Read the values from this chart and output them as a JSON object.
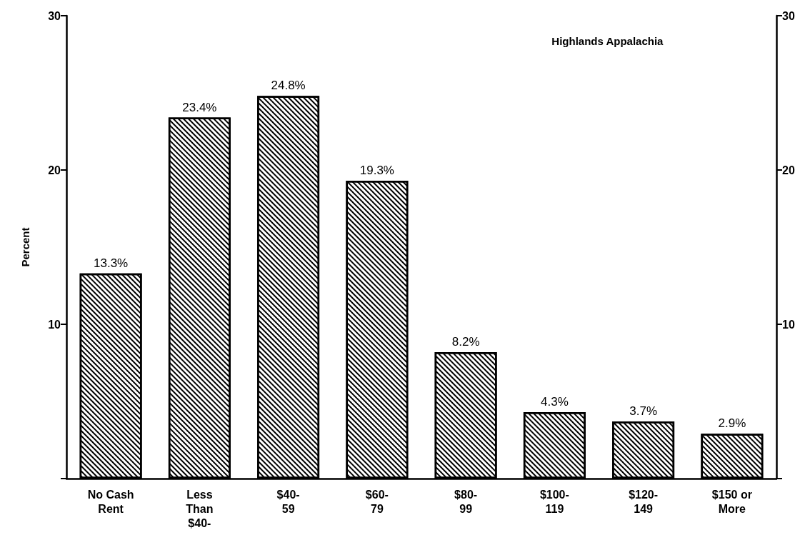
{
  "chart_data": {
    "type": "bar",
    "title": "Highlands Appalachia",
    "ylabel": "Percent",
    "categories": [
      "No Cash\nRent",
      "Less\nThan\n$40-",
      "$40-\n59",
      "$60-\n79",
      "$80-\n99",
      "$100-\n119",
      "$120-\n149",
      "$150 or\nMore"
    ],
    "values": [
      13.3,
      23.4,
      24.8,
      19.3,
      8.2,
      4.3,
      3.7,
      2.9
    ],
    "value_labels": [
      "13.3%",
      "23.4%",
      "24.8%",
      "19.3%",
      "8.2%",
      "4.3%",
      "3.7%",
      "2.9%"
    ],
    "color": "#ffffff",
    "ylim": [
      0,
      30
    ],
    "yticks": [
      {
        "value": 0,
        "label": null
      },
      10,
      20,
      30
    ],
    "y2lim": [
      0,
      30
    ],
    "y2ticks": [
      {
        "value": 0,
        "label": null
      },
      10,
      20,
      30
    ]
  }
}
